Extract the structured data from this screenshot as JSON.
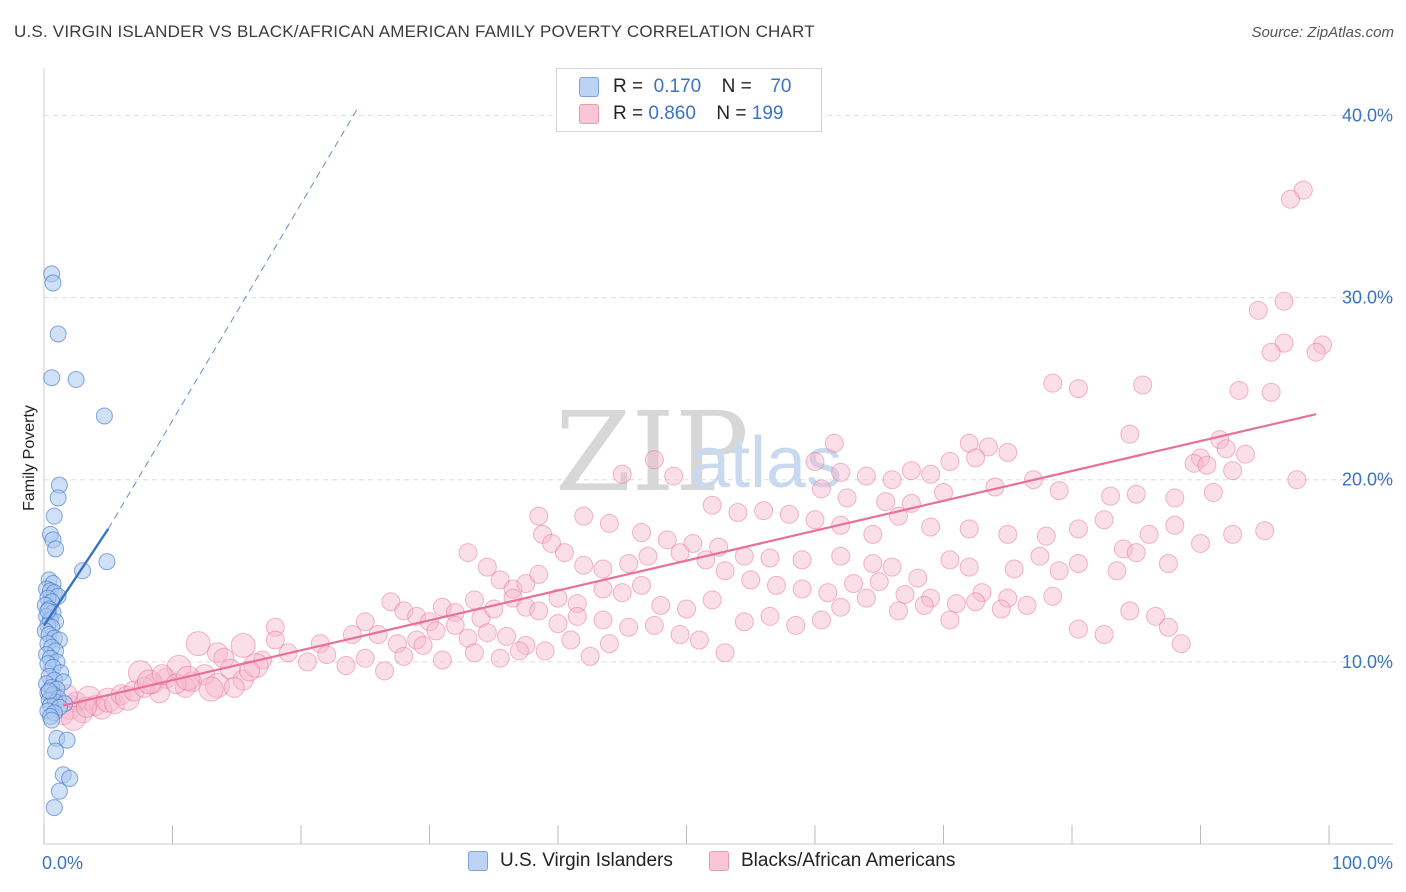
{
  "title": "U.S. VIRGIN ISLANDER VS BLACK/AFRICAN AMERICAN FAMILY POVERTY CORRELATION CHART",
  "source": "Source: ZipAtlas.com",
  "watermark": {
    "zip": "ZIP",
    "atlas": "atlas"
  },
  "colors": {
    "blue": "#3b73c4",
    "blue_fill": "#a9c6f0",
    "pink": "#e8709a",
    "pink_fill": "#f6b8cb",
    "grid": "#dddddd"
  },
  "legend": {
    "rows": [
      {
        "r_label": "R =",
        "r_value": "0.170",
        "n_label": "N =",
        "n_value": "70"
      },
      {
        "r_label": "R =",
        "r_value": "0.860",
        "n_label": "N =",
        "n_value": "199"
      }
    ]
  },
  "bottom_legend": [
    {
      "label": "U.S. Virgin Islanders"
    },
    {
      "label": "Blacks/African Americans"
    }
  ],
  "chart_data": {
    "type": "scatter",
    "title": "U.S. VIRGIN ISLANDER VS BLACK/AFRICAN AMERICAN FAMILY POVERTY CORRELATION CHART",
    "xlabel": "",
    "ylabel": "Family Poverty",
    "xlim": [
      0,
      100
    ],
    "ylim": [
      0,
      42
    ],
    "x_tick_labels": [
      "0.0%",
      "100.0%"
    ],
    "y_ticks": [
      10,
      20,
      30,
      40
    ],
    "y_tick_labels": [
      "10.0%",
      "20.0%",
      "30.0%",
      "40.0%"
    ],
    "series": [
      {
        "name": "U.S. Virgin Islanders",
        "color": "blue",
        "trend": {
          "x0": 0,
          "y0": 12.0,
          "x1": 5,
          "y1": 17.3,
          "dash_to_x": 24.5,
          "dash_to_y": 40.5
        },
        "points": [
          [
            0.6,
            31.3
          ],
          [
            0.7,
            30.8
          ],
          [
            1.1,
            28.0
          ],
          [
            0.6,
            25.6
          ],
          [
            2.5,
            25.5
          ],
          [
            4.7,
            23.5
          ],
          [
            1.2,
            19.7
          ],
          [
            1.1,
            19.0
          ],
          [
            0.8,
            18.0
          ],
          [
            0.5,
            17.0
          ],
          [
            0.7,
            16.7
          ],
          [
            0.9,
            16.2
          ],
          [
            4.9,
            15.5
          ],
          [
            3.0,
            15.0
          ],
          [
            0.4,
            14.5
          ],
          [
            0.7,
            14.3
          ],
          [
            0.2,
            14.0
          ],
          [
            0.5,
            13.9
          ],
          [
            0.8,
            13.8
          ],
          [
            1.1,
            13.6
          ],
          [
            0.3,
            13.5
          ],
          [
            0.6,
            13.3
          ],
          [
            0.1,
            13.1
          ],
          [
            0.4,
            12.9
          ],
          [
            0.7,
            12.7
          ],
          [
            0.2,
            12.5
          ],
          [
            0.5,
            12.3
          ],
          [
            0.9,
            12.2
          ],
          [
            0.3,
            12.0
          ],
          [
            0.6,
            11.9
          ],
          [
            0.1,
            11.7
          ],
          [
            0.4,
            11.5
          ],
          [
            0.8,
            11.3
          ],
          [
            1.2,
            11.2
          ],
          [
            0.3,
            11.0
          ],
          [
            0.6,
            10.8
          ],
          [
            0.9,
            10.6
          ],
          [
            0.2,
            10.4
          ],
          [
            0.5,
            10.2
          ],
          [
            1.0,
            10.0
          ],
          [
            0.3,
            9.9
          ],
          [
            0.7,
            9.7
          ],
          [
            1.3,
            9.4
          ],
          [
            0.4,
            9.2
          ],
          [
            0.8,
            9.0
          ],
          [
            1.5,
            8.9
          ],
          [
            0.2,
            8.8
          ],
          [
            0.6,
            8.6
          ],
          [
            1.0,
            8.5
          ],
          [
            0.3,
            8.3
          ],
          [
            0.7,
            8.2
          ],
          [
            1.1,
            8.0
          ],
          [
            0.4,
            7.9
          ],
          [
            0.9,
            7.8
          ],
          [
            1.6,
            7.7
          ],
          [
            0.5,
            7.6
          ],
          [
            1.2,
            7.5
          ],
          [
            0.3,
            7.3
          ],
          [
            0.8,
            7.2
          ],
          [
            0.5,
            7.0
          ],
          [
            0.6,
            6.8
          ],
          [
            1.0,
            5.8
          ],
          [
            1.8,
            5.7
          ],
          [
            0.9,
            5.1
          ],
          [
            1.5,
            3.8
          ],
          [
            2.0,
            3.6
          ],
          [
            1.2,
            2.9
          ],
          [
            0.8,
            2.0
          ],
          [
            0.4,
            8.4
          ],
          [
            0.3,
            12.8
          ]
        ]
      },
      {
        "name": "Blacks/African Americans",
        "color": "pink",
        "trend": {
          "x0": 1.5,
          "y0": 7.6,
          "x1": 99,
          "y1": 23.6
        },
        "points": [
          [
            98,
            35.9
          ],
          [
            97,
            35.4
          ],
          [
            96.5,
            29.8
          ],
          [
            94.5,
            29.3
          ],
          [
            96.5,
            27.5
          ],
          [
            95.5,
            27.0
          ],
          [
            99.5,
            27.4
          ],
          [
            99,
            27.0
          ],
          [
            78.5,
            25.3
          ],
          [
            80.5,
            25.0
          ],
          [
            85.5,
            25.2
          ],
          [
            93,
            24.9
          ],
          [
            95.5,
            24.8
          ],
          [
            84.5,
            22.5
          ],
          [
            91.5,
            22.2
          ],
          [
            92,
            21.7
          ],
          [
            93.5,
            21.4
          ],
          [
            90,
            21.2
          ],
          [
            89.5,
            20.9
          ],
          [
            90.5,
            20.8
          ],
          [
            92.5,
            20.5
          ],
          [
            97.5,
            20.0
          ],
          [
            72,
            22.0
          ],
          [
            73.5,
            21.8
          ],
          [
            75,
            21.5
          ],
          [
            72.5,
            21.2
          ],
          [
            70.5,
            21.0
          ],
          [
            69,
            20.3
          ],
          [
            67.5,
            20.5
          ],
          [
            66,
            20.0
          ],
          [
            64,
            20.2
          ],
          [
            62,
            20.4
          ],
          [
            60.5,
            19.5
          ],
          [
            62.5,
            19.0
          ],
          [
            65.5,
            18.8
          ],
          [
            67.5,
            18.7
          ],
          [
            70,
            19.3
          ],
          [
            74,
            19.6
          ],
          [
            77,
            20.0
          ],
          [
            79,
            19.4
          ],
          [
            83,
            19.1
          ],
          [
            85,
            19.2
          ],
          [
            88,
            19.0
          ],
          [
            91,
            19.3
          ],
          [
            52,
            18.6
          ],
          [
            54,
            18.2
          ],
          [
            56,
            18.3
          ],
          [
            58,
            18.1
          ],
          [
            60,
            17.8
          ],
          [
            62,
            17.5
          ],
          [
            64.5,
            17.0
          ],
          [
            66.5,
            18.0
          ],
          [
            69,
            17.4
          ],
          [
            72,
            17.3
          ],
          [
            75,
            17.0
          ],
          [
            78,
            16.9
          ],
          [
            80.5,
            17.3
          ],
          [
            82.5,
            17.8
          ],
          [
            84,
            16.2
          ],
          [
            86,
            17.0
          ],
          [
            88,
            17.5
          ],
          [
            47.5,
            21.1
          ],
          [
            45,
            20.3
          ],
          [
            49,
            20.2
          ],
          [
            60,
            21.0
          ],
          [
            61.5,
            22.0
          ],
          [
            42,
            18.0
          ],
          [
            44,
            17.6
          ],
          [
            46.5,
            17.1
          ],
          [
            48.5,
            16.7
          ],
          [
            50.5,
            16.5
          ],
          [
            52.5,
            16.3
          ],
          [
            54.5,
            15.8
          ],
          [
            56.5,
            15.7
          ],
          [
            59,
            15.6
          ],
          [
            62,
            15.8
          ],
          [
            64.5,
            15.4
          ],
          [
            66,
            15.2
          ],
          [
            68,
            14.6
          ],
          [
            70.5,
            15.6
          ],
          [
            72,
            15.2
          ],
          [
            75.5,
            15.1
          ],
          [
            77.5,
            15.8
          ],
          [
            79,
            15.0
          ],
          [
            80.5,
            15.4
          ],
          [
            83.5,
            15.0
          ],
          [
            85,
            16.0
          ],
          [
            87.5,
            15.4
          ],
          [
            90,
            16.5
          ],
          [
            92.5,
            17.0
          ],
          [
            95,
            17.2
          ],
          [
            38.5,
            18.0
          ],
          [
            38.8,
            17.0
          ],
          [
            39.5,
            16.5
          ],
          [
            40.5,
            16.0
          ],
          [
            42,
            15.3
          ],
          [
            43.5,
            15.1
          ],
          [
            45.5,
            15.4
          ],
          [
            47,
            15.8
          ],
          [
            49.5,
            16.0
          ],
          [
            51.5,
            15.6
          ],
          [
            53,
            15.0
          ],
          [
            55,
            14.5
          ],
          [
            57,
            14.2
          ],
          [
            59,
            14.0
          ],
          [
            61,
            13.8
          ],
          [
            63,
            14.3
          ],
          [
            65,
            14.4
          ],
          [
            67,
            13.7
          ],
          [
            69,
            13.5
          ],
          [
            71,
            13.2
          ],
          [
            73,
            13.8
          ],
          [
            75,
            13.5
          ],
          [
            33,
            16.0
          ],
          [
            34.5,
            15.2
          ],
          [
            35.5,
            14.5
          ],
          [
            36.5,
            14.0
          ],
          [
            37.5,
            14.3
          ],
          [
            38.5,
            14.8
          ],
          [
            40,
            13.5
          ],
          [
            41.5,
            13.2
          ],
          [
            43.5,
            14.0
          ],
          [
            45,
            13.8
          ],
          [
            46.5,
            14.2
          ],
          [
            48,
            13.1
          ],
          [
            50,
            12.9
          ],
          [
            52,
            13.4
          ],
          [
            54.5,
            12.2
          ],
          [
            56.5,
            12.5
          ],
          [
            58.5,
            12.0
          ],
          [
            60.5,
            12.3
          ],
          [
            62,
            13.0
          ],
          [
            64,
            13.5
          ],
          [
            66.5,
            12.8
          ],
          [
            68.5,
            13.1
          ],
          [
            70.5,
            12.3
          ],
          [
            72.5,
            13.3
          ],
          [
            74.5,
            12.9
          ],
          [
            76.5,
            13.1
          ],
          [
            78.5,
            13.6
          ],
          [
            80.5,
            11.8
          ],
          [
            82.5,
            11.5
          ],
          [
            84.5,
            12.8
          ],
          [
            86.5,
            12.5
          ],
          [
            87.5,
            11.9
          ],
          [
            88.5,
            11.0
          ],
          [
            27,
            13.3
          ],
          [
            28,
            12.8
          ],
          [
            29,
            12.5
          ],
          [
            30,
            12.2
          ],
          [
            31,
            13.0
          ],
          [
            32,
            12.7
          ],
          [
            33.5,
            13.4
          ],
          [
            34,
            12.4
          ],
          [
            35,
            12.9
          ],
          [
            36.5,
            13.5
          ],
          [
            37.5,
            13.0
          ],
          [
            38.5,
            12.8
          ],
          [
            40,
            12.1
          ],
          [
            41.5,
            12.5
          ],
          [
            43.5,
            12.3
          ],
          [
            45.5,
            11.9
          ],
          [
            47.5,
            12.0
          ],
          [
            49.5,
            11.5
          ],
          [
            51,
            11.2
          ],
          [
            53,
            10.5
          ],
          [
            18,
            11.9
          ],
          [
            21.5,
            11.0
          ],
          [
            24,
            11.5
          ],
          [
            25,
            12.2
          ],
          [
            26,
            11.5
          ],
          [
            27.5,
            11.0
          ],
          [
            29,
            11.2
          ],
          [
            30.5,
            11.7
          ],
          [
            32,
            12.0
          ],
          [
            33,
            11.3
          ],
          [
            34.5,
            11.6
          ],
          [
            36,
            11.4
          ],
          [
            37.5,
            10.9
          ],
          [
            39,
            10.6
          ],
          [
            41,
            11.2
          ],
          [
            42.5,
            10.3
          ],
          [
            44,
            11.0
          ],
          [
            12,
            11.0
          ],
          [
            13.5,
            10.5
          ],
          [
            14,
            10.2
          ],
          [
            15.5,
            10.9
          ],
          [
            17,
            10.1
          ],
          [
            18,
            11.2
          ],
          [
            19,
            10.5
          ],
          [
            20.5,
            10.0
          ],
          [
            22,
            10.4
          ],
          [
            23.5,
            9.8
          ],
          [
            25,
            10.2
          ],
          [
            26.5,
            9.5
          ],
          [
            28,
            10.3
          ],
          [
            29.5,
            10.9
          ],
          [
            31,
            10.1
          ],
          [
            33.5,
            10.5
          ],
          [
            35.5,
            10.2
          ],
          [
            37,
            10.6
          ],
          [
            7.5,
            9.4
          ],
          [
            8.5,
            8.8
          ],
          [
            9.5,
            9.1
          ],
          [
            10.5,
            9.7
          ],
          [
            11.5,
            8.9
          ],
          [
            12.5,
            9.3
          ],
          [
            13.5,
            8.7
          ],
          [
            14.5,
            9.6
          ],
          [
            15.5,
            9.0
          ],
          [
            16.5,
            9.8
          ],
          [
            9,
            8.3
          ],
          [
            11,
            8.6
          ],
          [
            13,
            8.5
          ],
          [
            14.8,
            8.6
          ],
          [
            16,
            9.5
          ],
          [
            2,
            7.5
          ],
          [
            2.5,
            7.8
          ],
          [
            3,
            7.2
          ],
          [
            3.5,
            8.0
          ],
          [
            4,
            7.6
          ],
          [
            4.5,
            7.4
          ],
          [
            5,
            7.9
          ],
          [
            5.5,
            7.7
          ],
          [
            6,
            8.2
          ],
          [
            6.5,
            8.0
          ],
          [
            7,
            8.4
          ],
          [
            7.8,
            8.6
          ],
          [
            8.2,
            8.9
          ],
          [
            9.2,
            9.3
          ],
          [
            10.3,
            8.8
          ],
          [
            11.2,
            9.1
          ],
          [
            1.5,
            7.1
          ],
          [
            1.8,
            8.2
          ],
          [
            2.3,
            6.9
          ],
          [
            3.3,
            7.5
          ]
        ]
      }
    ]
  }
}
